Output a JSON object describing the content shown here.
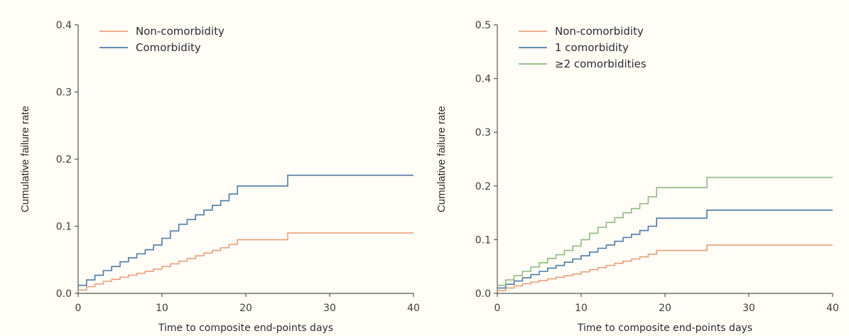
{
  "chart_data": [
    {
      "type": "line",
      "step": true,
      "xlabel": "Time to composite end-points days",
      "ylabel": "Cumulative failure rate",
      "xlim": [
        0,
        40
      ],
      "ylim": [
        0,
        0.4
      ],
      "xticks": [
        "0",
        "10",
        "20",
        "30",
        "40"
      ],
      "yticks": [
        "0.0",
        "0.1",
        "0.2",
        "0.3",
        "0.4"
      ],
      "legend_position": "top-left",
      "series": [
        {
          "name": "Non-comorbidity",
          "color": "#e8a07c",
          "x": [
            0,
            1,
            2,
            3,
            4,
            5,
            6,
            7,
            8,
            9,
            10,
            11,
            12,
            13,
            14,
            15,
            16,
            17,
            18,
            19,
            25,
            40
          ],
          "y": [
            0.005,
            0.01,
            0.014,
            0.018,
            0.021,
            0.024,
            0.027,
            0.03,
            0.033,
            0.036,
            0.04,
            0.044,
            0.048,
            0.052,
            0.056,
            0.06,
            0.064,
            0.068,
            0.073,
            0.08,
            0.09,
            0.09
          ]
        },
        {
          "name": "Comorbidity",
          "color": "#4d7aa6",
          "x": [
            0,
            1,
            2,
            3,
            4,
            5,
            6,
            7,
            8,
            9,
            10,
            11,
            12,
            13,
            14,
            15,
            16,
            17,
            18,
            19,
            25,
            40
          ],
          "y": [
            0.012,
            0.02,
            0.027,
            0.034,
            0.04,
            0.047,
            0.053,
            0.059,
            0.065,
            0.072,
            0.082,
            0.093,
            0.103,
            0.11,
            0.117,
            0.124,
            0.131,
            0.138,
            0.148,
            0.16,
            0.176,
            0.176
          ]
        }
      ]
    },
    {
      "type": "line",
      "step": true,
      "xlabel": "Time to composite end-points days",
      "ylabel": "Cumulative failure rate",
      "xlim": [
        0,
        40
      ],
      "ylim": [
        0,
        0.5
      ],
      "xticks": [
        "0",
        "10",
        "20",
        "30",
        "40"
      ],
      "yticks": [
        "0.0",
        "0.1",
        "0.2",
        "0.3",
        "0.4",
        "0.5"
      ],
      "legend_position": "top-left",
      "series": [
        {
          "name": "Non-comorbidity",
          "color": "#e8a07c",
          "x": [
            0,
            1,
            2,
            3,
            4,
            5,
            6,
            7,
            8,
            9,
            10,
            11,
            12,
            13,
            14,
            15,
            16,
            17,
            18,
            19,
            25,
            40
          ],
          "y": [
            0.005,
            0.01,
            0.014,
            0.018,
            0.021,
            0.024,
            0.027,
            0.03,
            0.033,
            0.036,
            0.04,
            0.044,
            0.048,
            0.052,
            0.056,
            0.06,
            0.064,
            0.068,
            0.073,
            0.08,
            0.09,
            0.09
          ]
        },
        {
          "name": "1 comorbidity",
          "color": "#4d7aa6",
          "x": [
            0,
            1,
            2,
            3,
            4,
            5,
            6,
            7,
            8,
            9,
            10,
            11,
            12,
            13,
            14,
            15,
            16,
            17,
            18,
            19,
            25,
            40
          ],
          "y": [
            0.01,
            0.017,
            0.023,
            0.029,
            0.035,
            0.041,
            0.047,
            0.052,
            0.058,
            0.064,
            0.07,
            0.077,
            0.084,
            0.09,
            0.097,
            0.104,
            0.11,
            0.117,
            0.125,
            0.14,
            0.155,
            0.155
          ]
        },
        {
          "name": "≥2 comorbidities",
          "color": "#8fb882",
          "x": [
            0,
            1,
            2,
            3,
            4,
            5,
            6,
            7,
            8,
            9,
            10,
            11,
            12,
            13,
            14,
            15,
            16,
            17,
            18,
            19,
            25,
            40
          ],
          "y": [
            0.015,
            0.025,
            0.033,
            0.041,
            0.049,
            0.057,
            0.065,
            0.072,
            0.08,
            0.088,
            0.1,
            0.112,
            0.123,
            0.132,
            0.141,
            0.15,
            0.158,
            0.167,
            0.18,
            0.197,
            0.216,
            0.216
          ]
        }
      ]
    }
  ]
}
